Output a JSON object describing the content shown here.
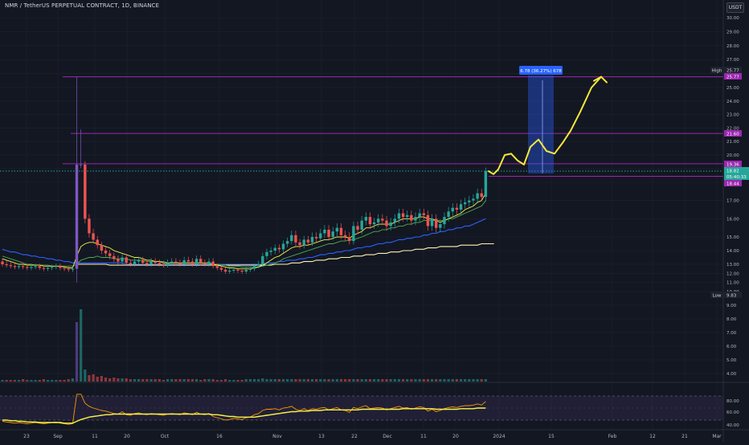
{
  "header": {
    "title": "NMR / TetherUS PERPETUAL CONTRACT, 1D, BINANCE",
    "currency": "USDT"
  },
  "colors": {
    "background": "#131722",
    "grid": "#1f2330",
    "up": "#26a69a",
    "down": "#ef5350",
    "volume_spike": "#7e57c2",
    "ema_fast": "#f7f34a",
    "ema_mid": "#4caf50",
    "sma_blue": "#2962ff",
    "sma_long": "#fff3b0",
    "level_line": "#9c27b0",
    "projection": "#f7e83a",
    "position_box": "#2962ff",
    "rsi_band": "#7e57c2",
    "rsi_line": "#ff9800"
  },
  "price_axis": {
    "ticks": [
      "30.00",
      "29.00",
      "28.00",
      "27.00",
      "26.00",
      "25.00",
      "24.00",
      "23.00",
      "22.00",
      "21.00",
      "20.00",
      "19.00",
      "18.00",
      "17.00",
      "16.00",
      "15.00",
      "14.00",
      "13.00",
      "12.00",
      "11.00",
      "10.00",
      "9.00",
      "8.00",
      "7.00",
      "6.00",
      "5.00",
      "4.00"
    ],
    "high_label": "High",
    "high_value": "25.77",
    "level_value_25": "25.77",
    "level_value_21": "21.60",
    "level_value_19": "19.36",
    "last_price": "18.82",
    "countdown": "05:40:33",
    "entry_value": "18.44",
    "low_label": "Low",
    "low_value": "9.83"
  },
  "rsi_axis": {
    "ticks": [
      "80.00",
      "60.00",
      "40.00"
    ]
  },
  "time_axis": {
    "labels": [
      "23",
      "Sep",
      "11",
      "20",
      "Oct",
      "16",
      "Nov",
      "13",
      "22",
      "Dec",
      "11",
      "20",
      "2024",
      "15",
      "Feb",
      "12",
      "21",
      "Mar"
    ]
  },
  "position_tool": {
    "label": "6.78 (36.27%) 678"
  },
  "chart_data": {
    "type": "candlestick",
    "symbol": "NMR / TetherUS PERPETUAL CONTRACT",
    "interval": "1D",
    "exchange": "BINANCE",
    "ylim": [
      3.6,
      31
    ],
    "levels": [
      25.77,
      21.6,
      19.36,
      18.44
    ],
    "annotations": [
      "High 25.77",
      "Low 9.83",
      "6.78 (36.27%) 678"
    ],
    "close": [
      13.0,
      12.9,
      12.8,
      12.7,
      12.8,
      12.7,
      12.6,
      12.7,
      12.8,
      12.6,
      12.5,
      12.6,
      12.7,
      12.8,
      12.6,
      12.5,
      12.4,
      12.5,
      19.3,
      19.3,
      16.0,
      15.2,
      14.8,
      14.4,
      14.0,
      13.8,
      13.6,
      13.4,
      13.2,
      13.5,
      13.1,
      13.0,
      13.2,
      13.3,
      13.1,
      13.0,
      13.2,
      13.1,
      13.0,
      12.9,
      13.1,
      13.2,
      13.1,
      13.0,
      13.3,
      13.2,
      13.0,
      13.4,
      13.1,
      13.0,
      13.2,
      12.8,
      12.6,
      12.4,
      12.2,
      12.3,
      12.4,
      12.3,
      12.2,
      12.4,
      12.5,
      12.8,
      13.0,
      13.6,
      13.9,
      14.0,
      14.2,
      14.1,
      14.5,
      14.7,
      15.1,
      14.6,
      14.4,
      14.8,
      14.6,
      15.0,
      14.9,
      15.2,
      15.4,
      15.0,
      15.3,
      15.5,
      15.1,
      15.0,
      14.7,
      15.6,
      15.4,
      15.9,
      16.1,
      15.7,
      15.8,
      16.0,
      15.9,
      15.6,
      15.8,
      16.0,
      16.3,
      16.1,
      16.2,
      15.9,
      16.1,
      16.3,
      16.2,
      15.6,
      16.0,
      15.5,
      15.7,
      16.1,
      16.4,
      16.6,
      16.5,
      16.8,
      16.9,
      17.0,
      17.1,
      17.4,
      17.2,
      18.82
    ],
    "ema_fast": [
      13.4,
      13.3,
      13.2,
      13.1,
      13.0,
      13.0,
      12.9,
      12.9,
      12.9,
      12.9,
      12.8,
      12.8,
      12.8,
      12.8,
      12.8,
      12.7,
      12.6,
      12.6,
      13.6,
      14.3,
      14.5,
      14.6,
      14.6,
      14.5,
      14.4,
      14.3,
      14.2,
      14.0,
      13.9,
      13.8,
      13.7,
      13.6,
      13.5,
      13.5,
      13.4,
      13.3,
      13.3,
      13.2,
      13.2,
      13.1,
      13.1,
      13.1,
      13.1,
      13.1,
      13.1,
      13.1,
      13.1,
      13.1,
      13.1,
      13.1,
      13.1,
      13.0,
      12.9,
      12.8,
      12.7,
      12.6,
      12.6,
      12.5,
      12.5,
      12.5,
      12.5,
      12.6,
      12.7,
      12.9,
      13.1,
      13.3,
      13.5,
      13.6,
      13.8,
      14.0,
      14.2,
      14.3,
      14.3,
      14.4,
      14.4,
      14.5,
      14.6,
      14.7,
      14.8,
      14.8,
      14.9,
      15.0,
      15.0,
      15.0,
      14.9,
      15.1,
      15.2,
      15.3,
      15.5,
      15.5,
      15.6,
      15.7,
      15.7,
      15.7,
      15.7,
      15.8,
      15.9,
      16.0,
      16.0,
      16.0,
      16.0,
      16.1,
      16.1,
      16.0,
      16.0,
      15.9,
      15.8,
      15.9,
      16.0,
      16.1,
      16.2,
      16.3,
      16.5,
      16.6,
      16.7,
      16.9,
      17.0,
      17.4
    ],
    "ema_mid": [
      13.6,
      13.5,
      13.4,
      13.3,
      13.2,
      13.1,
      13.0,
      13.0,
      12.9,
      12.9,
      12.9,
      12.9,
      12.8,
      12.8,
      12.8,
      12.8,
      12.8,
      12.8,
      13.0,
      13.3,
      13.4,
      13.5,
      13.5,
      13.6,
      13.5,
      13.5,
      13.5,
      13.4,
      13.4,
      13.4,
      13.4,
      13.3,
      13.3,
      13.3,
      13.3,
      13.2,
      13.2,
      13.2,
      13.2,
      13.2,
      13.1,
      13.1,
      13.1,
      13.1,
      13.1,
      13.1,
      13.1,
      13.1,
      13.1,
      13.1,
      13.1,
      13.0,
      13.0,
      12.9,
      12.9,
      12.8,
      12.8,
      12.8,
      12.7,
      12.7,
      12.7,
      12.7,
      12.7,
      12.8,
      12.9,
      13.0,
      13.1,
      13.2,
      13.4,
      13.5,
      13.6,
      13.7,
      13.8,
      13.9,
      14.0,
      14.1,
      14.2,
      14.3,
      14.4,
      14.5,
      14.5,
      14.6,
      14.7,
      14.7,
      14.8,
      14.8,
      14.9,
      15.0,
      15.1,
      15.2,
      15.3,
      15.3,
      15.4,
      15.4,
      15.5,
      15.5,
      15.6,
      15.6,
      15.7,
      15.7,
      15.8,
      15.8,
      15.9,
      15.9,
      15.9,
      15.9,
      15.9,
      15.9,
      16.0,
      16.0,
      16.1,
      16.2,
      16.3,
      16.4,
      16.5,
      16.6,
      16.7,
      17.0
    ],
    "sma_blue": [
      14.1,
      14.0,
      13.9,
      13.9,
      13.8,
      13.7,
      13.7,
      13.6,
      13.6,
      13.5,
      13.5,
      13.4,
      13.4,
      13.3,
      13.3,
      13.2,
      13.2,
      13.1,
      13.1,
      13.1,
      13.1,
      13.1,
      13.1,
      13.1,
      13.1,
      13.1,
      13.1,
      13.1,
      13.1,
      13.1,
      13.0,
      13.0,
      13.0,
      13.0,
      13.0,
      13.0,
      13.0,
      13.0,
      13.0,
      13.0,
      13.0,
      13.0,
      13.0,
      13.0,
      13.0,
      13.0,
      13.0,
      13.0,
      13.0,
      13.0,
      13.0,
      13.0,
      13.0,
      13.0,
      13.0,
      13.0,
      13.0,
      13.0,
      13.0,
      13.0,
      13.0,
      13.0,
      13.0,
      13.0,
      13.1,
      13.1,
      13.1,
      13.2,
      13.2,
      13.3,
      13.3,
      13.3,
      13.4,
      13.4,
      13.5,
      13.5,
      13.6,
      13.7,
      13.7,
      13.8,
      13.8,
      13.9,
      13.9,
      14.0,
      14.0,
      14.1,
      14.2,
      14.2,
      14.3,
      14.3,
      14.4,
      14.5,
      14.5,
      14.6,
      14.6,
      14.7,
      14.8,
      14.8,
      14.9,
      14.9,
      15.0,
      15.0,
      15.1,
      15.1,
      15.2,
      15.2,
      15.3,
      15.3,
      15.4,
      15.4,
      15.5,
      15.5,
      15.6,
      15.6,
      15.7,
      15.8,
      15.9,
      16.0
    ],
    "sma_long_start_index": 18,
    "sma_long": [
      13.0,
      13.0,
      13.0,
      13.0,
      13.0,
      13.0,
      13.0,
      13.0,
      12.9,
      12.9,
      12.9,
      12.9,
      12.9,
      12.9,
      12.9,
      12.9,
      12.9,
      12.9,
      12.9,
      12.9,
      12.9,
      12.9,
      12.9,
      12.9,
      12.9,
      12.9,
      12.9,
      12.9,
      12.9,
      12.9,
      12.9,
      12.9,
      12.9,
      12.9,
      12.9,
      12.9,
      12.9,
      12.9,
      12.9,
      12.9,
      12.9,
      12.9,
      12.9,
      12.9,
      12.9,
      12.9,
      12.9,
      12.9,
      13.0,
      13.0,
      13.0,
      13.0,
      13.1,
      13.1,
      13.1,
      13.2,
      13.2,
      13.2,
      13.3,
      13.3,
      13.3,
      13.4,
      13.4,
      13.4,
      13.5,
      13.5,
      13.5,
      13.6,
      13.6,
      13.6,
      13.7,
      13.7,
      13.7,
      13.8,
      13.8,
      13.8,
      13.9,
      13.9,
      13.9,
      14.0,
      14.0,
      14.0,
      14.1,
      14.1,
      14.1,
      14.2,
      14.2,
      14.2,
      14.3,
      14.3,
      14.3,
      14.3,
      14.3,
      14.4,
      14.4,
      14.4,
      14.4,
      14.4,
      14.5,
      14.5,
      14.5,
      14.5
    ],
    "volume": [
      0.2,
      0.2,
      0.2,
      0.2,
      0.2,
      0.3,
      0.2,
      0.2,
      0.2,
      0.2,
      0.3,
      0.2,
      0.2,
      0.2,
      0.2,
      0.2,
      0.3,
      0.4,
      7.4,
      9.0,
      1.5,
      0.8,
      0.9,
      0.6,
      0.7,
      0.5,
      0.4,
      0.5,
      0.4,
      0.4,
      0.4,
      0.3,
      0.3,
      0.3,
      0.3,
      0.3,
      0.3,
      0.3,
      0.3,
      0.2,
      0.3,
      0.3,
      0.3,
      0.3,
      0.3,
      0.3,
      0.3,
      0.3,
      0.2,
      0.3,
      0.3,
      0.3,
      0.2,
      0.2,
      0.3,
      0.2,
      0.2,
      0.2,
      0.2,
      0.3,
      0.3,
      0.3,
      0.3,
      0.4,
      0.3,
      0.3,
      0.3,
      0.3,
      0.3,
      0.3,
      0.3,
      0.3,
      0.3,
      0.3,
      0.3,
      0.3,
      0.3,
      0.3,
      0.3,
      0.3,
      0.3,
      0.3,
      0.3,
      0.3,
      0.3,
      0.3,
      0.3,
      0.3,
      0.3,
      0.3,
      0.3,
      0.3,
      0.3,
      0.3,
      0.3,
      0.3,
      0.3,
      0.3,
      0.3,
      0.3,
      0.3,
      0.3,
      0.3,
      0.3,
      0.3,
      0.3,
      0.3,
      0.3,
      0.3,
      0.3,
      0.3,
      0.3,
      0.3,
      0.3,
      0.3,
      0.3,
      0.3,
      0.3
    ],
    "rsi": [
      38,
      37,
      36,
      35,
      36,
      35,
      34,
      35,
      36,
      35,
      34,
      35,
      36,
      37,
      35,
      34,
      33,
      34,
      83,
      83,
      68,
      63,
      60,
      58,
      56,
      55,
      53,
      51,
      50,
      54,
      49,
      48,
      51,
      52,
      50,
      49,
      51,
      50,
      49,
      48,
      50,
      51,
      50,
      49,
      52,
      51,
      49,
      53,
      50,
      49,
      51,
      46,
      44,
      42,
      40,
      41,
      43,
      42,
      41,
      44,
      45,
      49,
      51,
      56,
      58,
      58,
      59,
      57,
      60,
      61,
      63,
      58,
      56,
      59,
      56,
      59,
      58,
      60,
      61,
      57,
      59,
      61,
      57,
      56,
      53,
      61,
      59,
      62,
      64,
      59,
      60,
      61,
      60,
      57,
      59,
      61,
      63,
      60,
      61,
      58,
      60,
      62,
      61,
      55,
      58,
      54,
      56,
      59,
      61,
      62,
      61,
      63,
      64,
      64,
      65,
      67,
      65,
      71
    ],
    "rsi_ma": [
      40,
      40,
      39,
      39,
      38,
      38,
      37,
      37,
      37,
      36,
      36,
      36,
      36,
      36,
      36,
      35,
      35,
      35,
      38,
      41,
      43,
      45,
      46,
      47,
      48,
      49,
      49,
      50,
      50,
      50,
      50,
      50,
      50,
      50,
      50,
      50,
      50,
      50,
      50,
      50,
      50,
      50,
      50,
      50,
      50,
      50,
      50,
      50,
      50,
      50,
      50,
      49,
      49,
      48,
      47,
      46,
      46,
      45,
      45,
      45,
      45,
      45,
      46,
      47,
      48,
      49,
      50,
      51,
      52,
      53,
      54,
      54,
      55,
      55,
      55,
      56,
      56,
      56,
      57,
      57,
      57,
      57,
      57,
      57,
      57,
      57,
      57,
      58,
      58,
      58,
      58,
      58,
      58,
      58,
      58,
      58,
      58,
      59,
      59,
      59,
      59,
      59,
      59,
      59,
      59,
      58,
      58,
      58,
      58,
      58,
      58,
      59,
      59,
      59,
      59,
      60,
      60,
      60
    ],
    "projection": [
      18.82,
      18.6,
      18.95,
      20.0,
      20.1,
      19.6,
      19.3,
      20.6,
      21.15,
      20.3,
      20.1,
      20.9,
      21.8,
      23.2,
      25.0,
      25.77
    ]
  }
}
